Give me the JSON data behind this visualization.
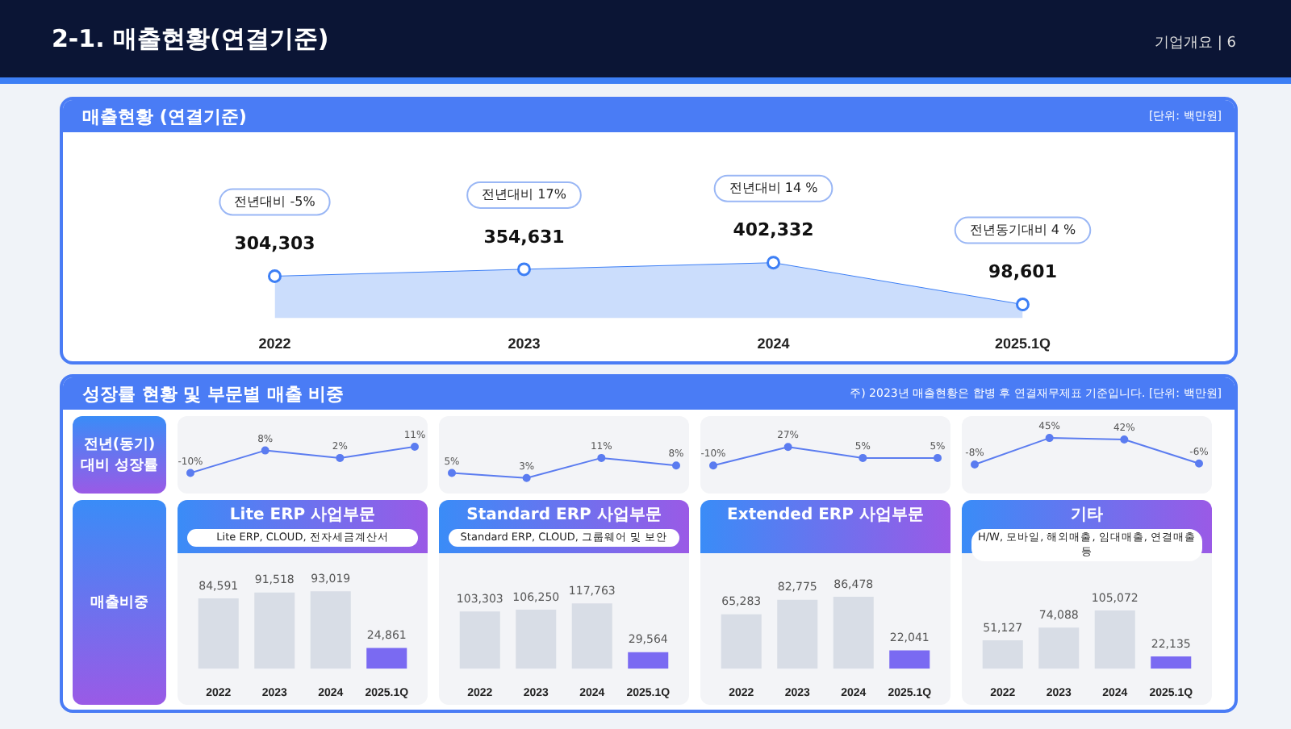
{
  "chart_data": [
    {
      "type": "other",
      "title": "2-1. 매출현황(연결기준)",
      "annotations": [
        "기업개요 | 6"
      ]
    },
    {
      "type": "area",
      "title": "매출현황 (연결기준)",
      "categories": [
        "2022",
        "2023",
        "2024",
        "2025.1Q"
      ],
      "values": [
        304303,
        354631,
        402332,
        98601
      ],
      "value_labels": [
        "304,303",
        "354,631",
        "402,332",
        "98,601"
      ],
      "color": "#3d7ff5",
      "marker": "circle",
      "annotations": [
        "[단위: 백만원]",
        "전년대비 -5%",
        "전년대비 17%",
        "전년대비 14 %",
        "전년동기대비 4 %"
      ]
    },
    {
      "type": "other",
      "title": "성장률 현황 및 부문별 매출 비중",
      "annotations": [
        "주) 2023년 매출현황은 합병 후 연결재무제표 기준입니다.",
        "[단위: 백만원]"
      ]
    },
    {
      "type": "other",
      "title": "전년(동기) 대비 성장률"
    },
    {
      "type": "line",
      "categories": [
        null,
        null,
        null,
        null
      ],
      "values": [
        -10,
        8,
        2,
        11
      ],
      "value_labels": [
        "-10%",
        "8%",
        "2%",
        "11%"
      ],
      "color": "#5b7cf0",
      "marker": "circle"
    },
    {
      "type": "line",
      "categories": [
        null,
        null,
        null,
        null
      ],
      "values": [
        5,
        3,
        11,
        8
      ],
      "value_labels": [
        "5%",
        "3%",
        "11%",
        "8%"
      ],
      "color": "#5b7cf0",
      "marker": "circle"
    },
    {
      "type": "line",
      "categories": [
        null,
        null,
        null,
        null
      ],
      "values": [
        -10,
        27,
        5,
        5
      ],
      "value_labels": [
        "-10%",
        "27%",
        "5%",
        "5%"
      ],
      "color": "#5b7cf0",
      "marker": "circle"
    },
    {
      "type": "line",
      "categories": [
        null,
        null,
        null,
        null
      ],
      "values": [
        -8,
        45,
        42,
        -6
      ],
      "value_labels": [
        "-8%",
        "45%",
        "42%",
        "-6%"
      ],
      "color": "#5b7cf0",
      "marker": "circle"
    },
    {
      "type": "other",
      "title": "매출비중"
    },
    {
      "type": "bar",
      "title": "Lite ERP 사업부문",
      "subtitle": "Lite ERP, CLOUD, 전자세금계산서",
      "categories": [
        "2022",
        "2023",
        "2024",
        "2025.1Q"
      ],
      "values": [
        84591,
        91518,
        93019,
        24861
      ],
      "value_labels": [
        "84,591",
        "91,518",
        "93,019",
        "24,861"
      ],
      "colors": [
        "#d8dde6",
        "#d8dde6",
        "#d8dde6",
        "#7a6af2"
      ]
    },
    {
      "type": "bar",
      "title": "Standard ERP 사업부문",
      "subtitle": "Standard ERP, CLOUD, 그룹웨어 및 보안",
      "categories": [
        "2022",
        "2023",
        "2024",
        "2025.1Q"
      ],
      "values": [
        103303,
        106250,
        117763,
        29564
      ],
      "value_labels": [
        "103,303",
        "106,250",
        "117,763",
        "29,564"
      ],
      "colors": [
        "#d8dde6",
        "#d8dde6",
        "#d8dde6",
        "#7a6af2"
      ]
    },
    {
      "type": "bar",
      "title": "Extended ERP 사업부문",
      "categories": [
        "2022",
        "2023",
        "2024",
        "2025.1Q"
      ],
      "values": [
        65283,
        82775,
        86478,
        22041
      ],
      "value_labels": [
        "65,283",
        "82,775",
        "86,478",
        "22,041"
      ],
      "colors": [
        "#d8dde6",
        "#d8dde6",
        "#d8dde6",
        "#7a6af2"
      ]
    },
    {
      "type": "bar",
      "title": "기타",
      "subtitle": "H/W, 모바일, 해외매출, 임대매출, 연결매출 등",
      "categories": [
        "2022",
        "2023",
        "2024",
        "2025.1Q"
      ],
      "values": [
        51127,
        74088,
        105072,
        22135
      ],
      "value_labels": [
        "51,127",
        "74,088",
        "105,072",
        "22,135"
      ],
      "colors": [
        "#d8dde6",
        "#d8dde6",
        "#d8dde6",
        "#7a6af2"
      ]
    }
  ]
}
